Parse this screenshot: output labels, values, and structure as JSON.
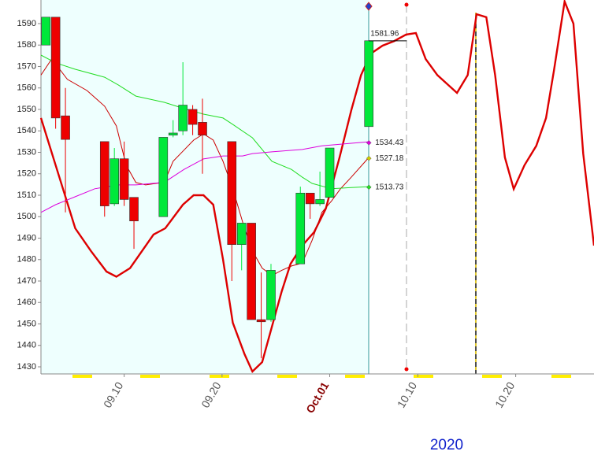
{
  "chart_data": {
    "type": "candlestick",
    "xlim": [
      1.5,
      58.0
    ],
    "xticks": [
      {
        "value": 10,
        "label": "09.10"
      },
      {
        "value": 20,
        "label": "09.20"
      },
      {
        "value": 31,
        "label": "Oct.01"
      },
      {
        "value": 40,
        "label": "10.10"
      },
      {
        "value": 50,
        "label": "10.20"
      }
    ],
    "ylim": [
      1426.7,
      1601
    ],
    "yticks": [
      1430,
      1440,
      1450,
      1460,
      1470,
      1480,
      1490,
      1500,
      1510,
      1520,
      1530,
      1540,
      1550,
      1560,
      1570,
      1580,
      1590
    ],
    "year_label": "2020",
    "up_color": "#00e83a",
    "down_color": "#ee0000",
    "candles": {
      "x": [
        2,
        3,
        4,
        8,
        9,
        10,
        11,
        14,
        15,
        16,
        17,
        18,
        21,
        22,
        23,
        24,
        25,
        28,
        29,
        30,
        31,
        35
      ],
      "open": [
        1580,
        1593,
        1547,
        1535,
        1506,
        1527,
        1509,
        1500,
        1538,
        1540,
        1550,
        1544,
        1535,
        1487,
        1497,
        1452,
        1452,
        1478,
        1511,
        1506,
        1509,
        1542
      ],
      "high": [
        1593,
        1593,
        1560,
        1535,
        1532,
        1535,
        1509,
        1537,
        1545,
        1572,
        1552,
        1555,
        1535,
        1497,
        1497,
        1474,
        1478,
        1514,
        1511,
        1521,
        1532,
        1582
      ],
      "low": [
        1580,
        1541,
        1502,
        1500,
        1505,
        1505,
        1485,
        1500,
        1537,
        1538,
        1538,
        1520,
        1470,
        1475,
        1452,
        1434,
        1451,
        1478,
        1499,
        1505,
        1509,
        1542
      ],
      "close": [
        1593,
        1546,
        1536,
        1505,
        1527,
        1508,
        1498,
        1537,
        1539,
        1552,
        1543,
        1538,
        1487,
        1497,
        1452,
        1451,
        1475,
        1511,
        1506,
        1508,
        1532,
        1582
      ]
    },
    "lines": [
      {
        "color": "#dd0000",
        "width": 2.4,
        "x": [
          1.5,
          3.0,
          5.0,
          6.6,
          8.2,
          9.2,
          10.6,
          13.0,
          14.2,
          16.0,
          17.1,
          18.1,
          19.1,
          20.1,
          21.1,
          22.3,
          23.1,
          24.1,
          25.1,
          26.1,
          27.0,
          28.2,
          29.4,
          30.6,
          32.0,
          33.2,
          34.2,
          35.2,
          36.4,
          37.6,
          38.8,
          39.8,
          40.8,
          42.0,
          43.1,
          44.0,
          45.1,
          46.0,
          47.0,
          47.9,
          48.9,
          49.8,
          50.9,
          52.1,
          53.1,
          53.9,
          55.0,
          55.9,
          56.9,
          58.0
        ],
        "values": [
          1546,
          1524,
          1494.6,
          1484,
          1474.4,
          1472,
          1476,
          1491.7,
          1494.6,
          1505.6,
          1510,
          1510,
          1505.6,
          1480,
          1450.6,
          1435.9,
          1427.8,
          1432.2,
          1448.8,
          1465.2,
          1478,
          1486.5,
          1492.8,
          1503.8,
          1527.6,
          1549.6,
          1566,
          1576,
          1579.7,
          1581.9,
          1584.9,
          1585.6,
          1573.5,
          1566,
          1561.4,
          1557.7,
          1566,
          1594.4,
          1593,
          1566,
          1527.6,
          1512.9,
          1524,
          1533,
          1546,
          1568,
          1600.3,
          1590,
          1529.4,
          1486.5
        ]
      },
      {
        "color": "#cc0000",
        "width": 1,
        "x": [
          1.5,
          2.6,
          4.2,
          6.2,
          8.0,
          9.2,
          10.2,
          11.2,
          12.2,
          14.1,
          15.0,
          16.1,
          17.1,
          18.1,
          19.1,
          20.1,
          21.1,
          22.1,
          23.1,
          24.1,
          25.1,
          26.1,
          27.1,
          28.2,
          29.2,
          30.2,
          31.2,
          32.1,
          33.2,
          35.0
        ],
        "values": [
          1566,
          1573.5,
          1564,
          1558.8,
          1551.5,
          1542.3,
          1524,
          1515.9,
          1514.8,
          1516,
          1525.8,
          1531,
          1535.7,
          1538.6,
          1535.7,
          1525.8,
          1513,
          1497.5,
          1484,
          1476,
          1472.6,
          1475,
          1477,
          1478.4,
          1489,
          1502,
          1507.4,
          1513,
          1518.4,
          1527.6
        ]
      },
      {
        "color": "#22dd22",
        "width": 1,
        "x": [
          1.5,
          3.0,
          5.0,
          8.0,
          9.4,
          11.2,
          14.1,
          16.1,
          18.1,
          20.1,
          21.1,
          23.1,
          25.1,
          27.1,
          28.2,
          29.2,
          31.2,
          33.2,
          35.0
        ],
        "values": [
          1575.3,
          1571.7,
          1568.7,
          1565,
          1561.4,
          1556.2,
          1553.3,
          1550.4,
          1547.8,
          1546,
          1543,
          1536.8,
          1525.8,
          1522,
          1518.4,
          1515.5,
          1513,
          1513.6,
          1514
        ]
      },
      {
        "color": "#dd00dd",
        "width": 1,
        "x": [
          1.5,
          3.0,
          5.0,
          7.0,
          9.4,
          11.2,
          14.1,
          16.1,
          18.1,
          20.1,
          22.1,
          23.1,
          25.1,
          28.2,
          30.2,
          33.2,
          35.0
        ],
        "values": [
          1502,
          1505.6,
          1509.3,
          1513,
          1514.8,
          1514.8,
          1516,
          1522,
          1526.9,
          1528.3,
          1528.3,
          1529.4,
          1530.2,
          1531.3,
          1533,
          1534.2,
          1534.9
        ]
      }
    ],
    "price_labels": [
      {
        "x": 35,
        "value": 1581.96,
        "color": "#000000"
      },
      {
        "x": 35,
        "value": 1534.43,
        "color": "#dd00dd"
      },
      {
        "x": 35,
        "value": 1527.18,
        "color": "#cccc00"
      },
      {
        "x": 35,
        "value": 1513.73,
        "color": "#22dd22"
      }
    ]
  }
}
